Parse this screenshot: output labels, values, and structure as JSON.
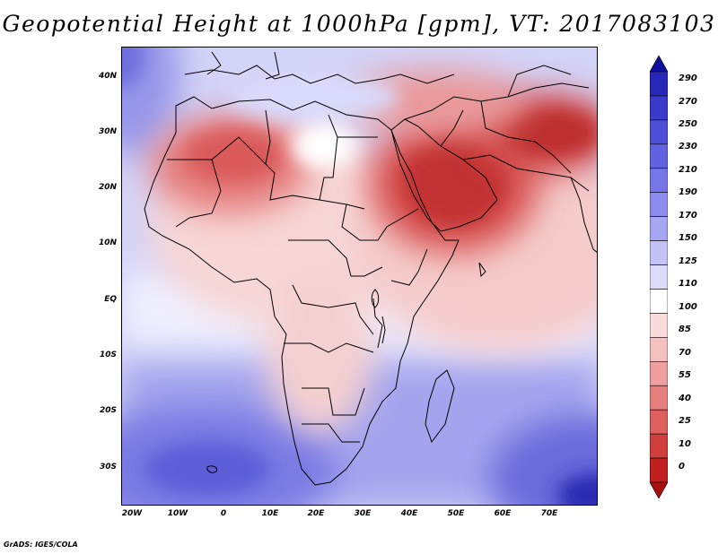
{
  "title": "Geopotential Height at 1000hPa [gpm], VT: 2017083103",
  "credit": "GrADS: IGES/COLA",
  "axes": {
    "y_ticks": [
      "40N",
      "30N",
      "20N",
      "10N",
      "EQ",
      "10S",
      "20S",
      "30S"
    ],
    "x_ticks": [
      "20W",
      "10W",
      "0",
      "10E",
      "20E",
      "30E",
      "40E",
      "50E",
      "60E",
      "70E"
    ]
  },
  "colorbar": {
    "labels": [
      "290",
      "270",
      "250",
      "230",
      "210",
      "190",
      "170",
      "150",
      "125",
      "110",
      "100",
      "85",
      "70",
      "55",
      "40",
      "25",
      "10",
      "0"
    ],
    "colors": [
      "#10109e",
      "#2727b8",
      "#3a3acb",
      "#4e4ed8",
      "#6262e0",
      "#7676e8",
      "#8c8cee",
      "#a6a6f2",
      "#c2c2f6",
      "#dcdcfa",
      "#ffffff",
      "#fbdcdc",
      "#f5c0c0",
      "#ef9f9f",
      "#e87f7f",
      "#df5e5e",
      "#d13e3e",
      "#c02020",
      "#a81010"
    ]
  }
}
